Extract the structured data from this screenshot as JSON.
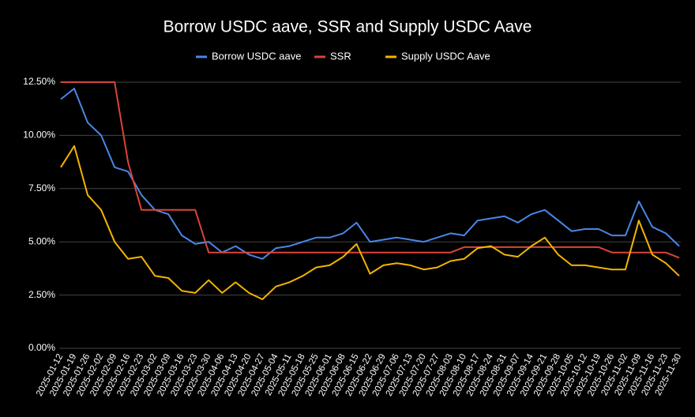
{
  "chart_data": {
    "type": "line",
    "title": "Borrow USDC aave, SSR and Supply USDC Aave",
    "categories": [
      "2025-01-12",
      "2025-01-19",
      "2025-01-26",
      "2025-02-02",
      "2025-02-09",
      "2025-02-16",
      "2025-02-23",
      "2025-03-02",
      "2025-03-09",
      "2025-03-16",
      "2025-03-23",
      "2025-03-30",
      "2025-04-06",
      "2025-04-13",
      "2025-04-20",
      "2025-04-27",
      "2025-05-04",
      "2025-05-11",
      "2025-05-18",
      "2025-05-25",
      "2025-06-01",
      "2025-06-08",
      "2025-06-15",
      "2025-06-22",
      "2025-06-29",
      "2025-07-06",
      "2025-07-13",
      "2025-07-20",
      "2025-07-27",
      "2025-08-03",
      "2025-08-10",
      "2025-08-17",
      "2025-08-24",
      "2025-08-31",
      "2025-09-07",
      "2025-09-14",
      "2025-09-21",
      "2025-09-28",
      "2025-10-05",
      "2025-10-12",
      "2025-10-19",
      "2025-10-26",
      "2025-11-02",
      "2025-11-09",
      "2025-11-16",
      "2025-11-23",
      "2025-11-30"
    ],
    "series": [
      {
        "name": "Borrow USDC aave",
        "color": "#4a86e8",
        "values": [
          11.7,
          12.2,
          10.6,
          10.0,
          8.5,
          8.3,
          7.2,
          6.5,
          6.3,
          5.3,
          4.9,
          5.0,
          4.5,
          4.8,
          4.4,
          4.2,
          4.7,
          4.8,
          5.0,
          5.2,
          5.2,
          5.4,
          5.9,
          5.0,
          5.1,
          5.2,
          5.1,
          5.0,
          5.2,
          5.4,
          5.3,
          6.0,
          6.1,
          6.2,
          5.9,
          6.3,
          6.5,
          6.0,
          5.5,
          5.6,
          5.6,
          5.3,
          5.3,
          6.9,
          5.7,
          5.4,
          4.8
        ]
      },
      {
        "name": "SSR",
        "color": "#db4437",
        "values": [
          12.5,
          12.5,
          12.5,
          12.5,
          12.5,
          8.75,
          6.5,
          6.5,
          6.5,
          6.5,
          6.5,
          4.5,
          4.5,
          4.5,
          4.5,
          4.5,
          4.5,
          4.5,
          4.5,
          4.5,
          4.5,
          4.5,
          4.5,
          4.5,
          4.5,
          4.5,
          4.5,
          4.5,
          4.5,
          4.5,
          4.75,
          4.75,
          4.75,
          4.75,
          4.75,
          4.75,
          4.75,
          4.75,
          4.75,
          4.75,
          4.75,
          4.5,
          4.5,
          4.5,
          4.5,
          4.5,
          4.25
        ]
      },
      {
        "name": "Supply USDC Aave",
        "color": "#f4b400",
        "values": [
          8.5,
          9.5,
          7.2,
          6.5,
          5.0,
          4.2,
          4.3,
          3.4,
          3.3,
          2.7,
          2.6,
          3.2,
          2.6,
          3.1,
          2.6,
          2.3,
          2.9,
          3.1,
          3.4,
          3.8,
          3.9,
          4.3,
          4.9,
          3.5,
          3.9,
          4.0,
          3.9,
          3.7,
          3.8,
          4.1,
          4.2,
          4.7,
          4.8,
          4.4,
          4.3,
          4.8,
          5.2,
          4.4,
          3.9,
          3.9,
          3.8,
          3.7,
          3.7,
          6.0,
          4.4,
          4.0,
          3.4
        ]
      }
    ],
    "ylim": [
      0,
      12.5
    ],
    "yticks": [
      {
        "value": 0,
        "label": "0.00%"
      },
      {
        "value": 2.5,
        "label": "2.50%"
      },
      {
        "value": 5,
        "label": "5.00%"
      },
      {
        "value": 7.5,
        "label": "7.50%"
      },
      {
        "value": 10,
        "label": "10.00%"
      },
      {
        "value": 12.5,
        "label": "12.50%"
      }
    ],
    "grid": true
  }
}
